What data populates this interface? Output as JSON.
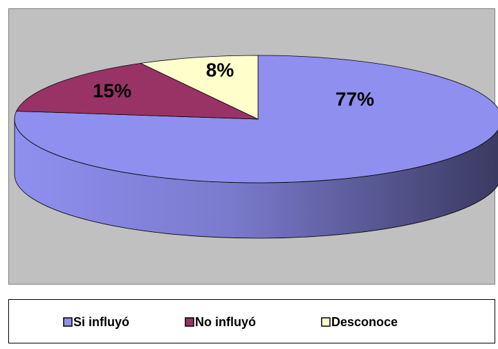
{
  "chart_data": {
    "type": "pie",
    "categories": [
      "Si influyó",
      "No influyó",
      "Desconoce"
    ],
    "values": [
      77,
      15,
      8
    ],
    "value_labels": [
      "77%",
      "15%",
      "8%"
    ],
    "colors": [
      "#8f8ff0",
      "#993366",
      "#ffffcc"
    ],
    "legend": "bottom"
  }
}
